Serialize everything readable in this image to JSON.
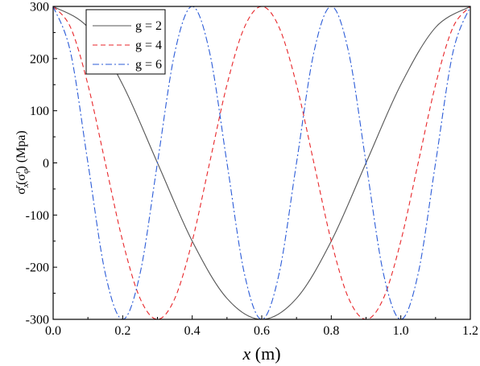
{
  "chart_data": {
    "type": "line",
    "title": "",
    "xlabel": {
      "var": "x",
      "unit": " (m)"
    },
    "ylabel": {
      "sigma": "σ",
      "sub_x": "x",
      "sup": "r",
      "open": "(σ",
      "sub_phi": "φ",
      "sup2": "r",
      "close": ") (Mpa)"
    },
    "xlim": [
      0.0,
      1.2
    ],
    "ylim": [
      -300,
      300
    ],
    "x_ticks": [
      0.0,
      0.2,
      0.4,
      0.6,
      0.8,
      1.0,
      1.2
    ],
    "x_tick_labels": [
      "0.0",
      "0.2",
      "0.4",
      "0.6",
      "0.8",
      "1.0",
      "1.2"
    ],
    "y_ticks": [
      -300,
      -200,
      -100,
      0,
      100,
      200,
      300
    ],
    "y_tick_labels": [
      "-300",
      "-200",
      "-100",
      "0",
      "100",
      "200",
      "300"
    ],
    "grid": false,
    "legend_position": "top-left",
    "series": [
      {
        "name": "g = 2",
        "color": "#555555",
        "dash": "solid",
        "x": [
          0.0,
          0.1,
          0.2,
          0.3,
          0.4,
          0.5,
          0.6,
          0.7,
          0.8,
          0.9,
          1.0,
          1.1,
          1.2
        ],
        "values": [
          300,
          259.8,
          150,
          0,
          -150,
          -259.8,
          -300,
          -259.8,
          -150,
          0,
          150,
          259.8,
          300
        ]
      },
      {
        "name": "g = 4",
        "color": "#e8262a",
        "dash": "dashed",
        "x": [
          0.0,
          0.05,
          0.1,
          0.15,
          0.2,
          0.25,
          0.3,
          0.35,
          0.4,
          0.45,
          0.5,
          0.55,
          0.6,
          0.65,
          0.7,
          0.75,
          0.8,
          0.85,
          0.9,
          0.95,
          1.0,
          1.05,
          1.1,
          1.15,
          1.2
        ],
        "values": [
          300,
          259.8,
          150,
          0,
          -150,
          -259.8,
          -300,
          -259.8,
          -150,
          0,
          150,
          259.8,
          300,
          259.8,
          150,
          0,
          -150,
          -259.8,
          -300,
          -259.8,
          -150,
          0,
          150,
          259.8,
          300
        ]
      },
      {
        "name": "g = 6",
        "color": "#2b5bd7",
        "dash": "dashdot",
        "x": [
          0.0,
          0.05,
          0.1,
          0.15,
          0.2,
          0.25,
          0.3,
          0.35,
          0.4,
          0.45,
          0.5,
          0.55,
          0.6,
          0.65,
          0.7,
          0.75,
          0.8,
          0.85,
          0.9,
          0.95,
          1.0,
          1.05,
          1.1,
          1.15,
          1.2
        ],
        "values": [
          300,
          212.1,
          0,
          -212.1,
          -300,
          -212.1,
          0,
          212.1,
          300,
          212.1,
          0,
          -212.1,
          -300,
          -212.1,
          0,
          212.1,
          300,
          212.1,
          0,
          -212.1,
          -300,
          -212.1,
          0,
          212.1,
          300
        ]
      }
    ]
  }
}
